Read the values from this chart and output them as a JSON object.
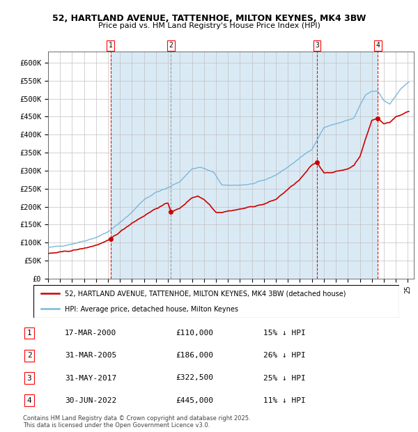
{
  "title": "52, HARTLAND AVENUE, TATTENHOE, MILTON KEYNES, MK4 3BW",
  "subtitle": "Price paid vs. HM Land Registry's House Price Index (HPI)",
  "xlim_start": 1995.0,
  "xlim_end": 2025.5,
  "ylim": [
    0,
    630000
  ],
  "yticks": [
    0,
    50000,
    100000,
    150000,
    200000,
    250000,
    300000,
    350000,
    400000,
    450000,
    500000,
    550000,
    600000
  ],
  "ytick_labels": [
    "£0",
    "£50K",
    "£100K",
    "£150K",
    "£200K",
    "£250K",
    "£300K",
    "£350K",
    "£400K",
    "£450K",
    "£500K",
    "£550K",
    "£600K"
  ],
  "sale_dates": [
    2000.21,
    2005.25,
    2017.42,
    2022.5
  ],
  "sale_prices": [
    110000,
    186000,
    322500,
    445000
  ],
  "sale_labels": [
    "1",
    "2",
    "3",
    "4"
  ],
  "hpi_color": "#7ab8d9",
  "hpi_fill_color": "#daeaf5",
  "sale_color": "#cc0000",
  "vline_color_red": "#cc0000",
  "vline_color_gray": "#888888",
  "footer": "Contains HM Land Registry data © Crown copyright and database right 2025.\nThis data is licensed under the Open Government Licence v3.0.",
  "legend_line1": "52, HARTLAND AVENUE, TATTENHOE, MILTON KEYNES, MK4 3BW (detached house)",
  "legend_line2": "HPI: Average price, detached house, Milton Keynes",
  "table_data": [
    [
      "1",
      "17-MAR-2000",
      "£110,000",
      "15% ↓ HPI"
    ],
    [
      "2",
      "31-MAR-2005",
      "£186,000",
      "26% ↓ HPI"
    ],
    [
      "3",
      "31-MAY-2017",
      "£322,500",
      "25% ↓ HPI"
    ],
    [
      "4",
      "30-JUN-2022",
      "£445,000",
      "11% ↓ HPI"
    ]
  ],
  "hpi_anchors_x": [
    1995,
    1996,
    1997,
    1998,
    1999,
    2000,
    2001,
    2002,
    2003,
    2004,
    2005,
    2006,
    2007,
    2007.7,
    2008.8,
    2009.5,
    2010,
    2011,
    2012,
    2013,
    2014,
    2015,
    2016,
    2017,
    2018,
    2019,
    2020,
    2020.5,
    2021,
    2021.5,
    2022,
    2022.5,
    2023,
    2023.5,
    2024,
    2024.5,
    2025
  ],
  "hpi_anchors_y": [
    85000,
    90000,
    97000,
    105000,
    115000,
    130000,
    155000,
    185000,
    220000,
    240000,
    252000,
    270000,
    305000,
    310000,
    295000,
    260000,
    258000,
    260000,
    263000,
    272000,
    288000,
    310000,
    335000,
    360000,
    420000,
    430000,
    440000,
    445000,
    480000,
    510000,
    520000,
    520000,
    495000,
    485000,
    510000,
    530000,
    545000
  ],
  "sale_anchors_x": [
    1995,
    1996,
    1997,
    1998,
    1999,
    2000.0,
    2000.21,
    2001,
    2002,
    2003,
    2004,
    2005.0,
    2005.25,
    2006,
    2007,
    2007.5,
    2008,
    2008.5,
    2009,
    2009.5,
    2010,
    2011,
    2012,
    2013,
    2014,
    2015,
    2016,
    2017.0,
    2017.42,
    2018,
    2018.5,
    2019,
    2019.5,
    2020,
    2020.5,
    2021,
    2021.5,
    2022.0,
    2022.5,
    2023,
    2023.5,
    2024,
    2024.5,
    2025
  ],
  "sale_anchors_y": [
    70000,
    73000,
    78000,
    84000,
    93000,
    105000,
    110000,
    130000,
    155000,
    175000,
    195000,
    210000,
    186000,
    195000,
    225000,
    230000,
    220000,
    205000,
    185000,
    185000,
    188000,
    193000,
    200000,
    207000,
    220000,
    248000,
    275000,
    315000,
    322500,
    295000,
    295000,
    298000,
    300000,
    305000,
    315000,
    340000,
    390000,
    440000,
    445000,
    430000,
    435000,
    450000,
    455000,
    465000
  ]
}
